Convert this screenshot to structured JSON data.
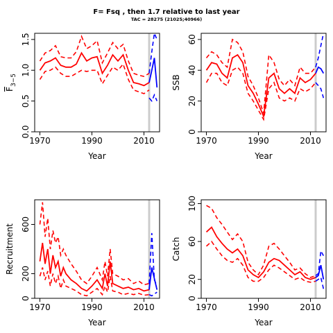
{
  "title": "F= Fsq , then 1.7  relative to last year",
  "subtitle": "TAC = 28275 (21025;40966)",
  "colors": {
    "historic": "#ff0000",
    "forecast": "#0000ff",
    "reference_line": "#cccccc"
  },
  "chart_data": [
    {
      "type": "line",
      "ylabel": "F-bar(3-5)",
      "ylabel_main": "F",
      "ylabel_sub": "3−5",
      "xlabel": "Year",
      "xlim": [
        1968,
        2016
      ],
      "ylim": [
        0,
        1.6
      ],
      "xticks": [
        1970,
        1990,
        2010
      ],
      "yticks": [
        0.0,
        0.5,
        1.0,
        1.5
      ],
      "ytick_labels": [
        "0.0",
        "0.5",
        "1.0",
        "1.5"
      ],
      "reference_year": 2012,
      "series": [
        {
          "role": "estimate",
          "x": [
            1970,
            1972,
            1974,
            1976,
            1978,
            1980,
            1982,
            1984,
            1986,
            1988,
            1990,
            1992,
            1994,
            1996,
            1998,
            2000,
            2002,
            2004,
            2006,
            2008,
            2010,
            2012
          ],
          "values": [
            1.0,
            1.12,
            1.15,
            1.2,
            1.08,
            1.05,
            1.05,
            1.1,
            1.28,
            1.15,
            1.2,
            1.22,
            0.95,
            1.08,
            1.25,
            1.15,
            1.25,
            1.0,
            0.8,
            0.78,
            0.75,
            0.8
          ]
        },
        {
          "role": "upper",
          "x": [
            1970,
            1972,
            1974,
            1976,
            1978,
            1980,
            1982,
            1984,
            1986,
            1988,
            1990,
            1992,
            1994,
            1996,
            1998,
            2000,
            2002,
            2004,
            2006,
            2008,
            2010,
            2012
          ],
          "values": [
            1.15,
            1.28,
            1.32,
            1.4,
            1.22,
            1.2,
            1.2,
            1.3,
            1.55,
            1.35,
            1.4,
            1.48,
            1.12,
            1.28,
            1.45,
            1.35,
            1.42,
            1.15,
            0.95,
            0.92,
            0.9,
            0.95
          ]
        },
        {
          "role": "lower",
          "x": [
            1970,
            1972,
            1974,
            1976,
            1978,
            1980,
            1982,
            1984,
            1986,
            1988,
            1990,
            1992,
            1994,
            1996,
            1998,
            2000,
            2002,
            2004,
            2006,
            2008,
            2010,
            2012
          ],
          "values": [
            0.85,
            0.98,
            1.0,
            1.05,
            0.95,
            0.9,
            0.9,
            0.95,
            1.0,
            0.98,
            1.0,
            1.0,
            0.78,
            0.92,
            1.05,
            1.0,
            1.1,
            0.85,
            0.68,
            0.65,
            0.62,
            0.68
          ]
        },
        {
          "role": "forecast",
          "x": [
            2012,
            2013,
            2014,
            2015
          ],
          "values": [
            0.8,
            1.0,
            1.2,
            0.72
          ]
        },
        {
          "role": "forecast_upper",
          "x": [
            2012,
            2013,
            2014,
            2015
          ],
          "values": [
            0.95,
            1.3,
            1.6,
            1.5
          ]
        },
        {
          "role": "forecast_lower",
          "x": [
            2012,
            2013,
            2014,
            2015
          ],
          "values": [
            0.55,
            0.5,
            0.6,
            0.5
          ]
        }
      ]
    },
    {
      "type": "line",
      "ylabel": "SSB",
      "xlabel": "Year",
      "xlim": [
        1968,
        2016
      ],
      "ylim": [
        0,
        64
      ],
      "xticks": [
        1970,
        1990,
        2010
      ],
      "yticks": [
        0,
        20,
        40,
        60
      ],
      "ytick_labels": [
        "0",
        "20",
        "40",
        "60"
      ],
      "reference_year": 2012,
      "series": [
        {
          "role": "estimate",
          "x": [
            1970,
            1972,
            1974,
            1976,
            1978,
            1980,
            1982,
            1984,
            1986,
            1988,
            1990,
            1992,
            1994,
            1996,
            1998,
            2000,
            2002,
            2004,
            2006,
            2008,
            2010,
            2012
          ],
          "values": [
            40,
            45,
            44,
            38,
            35,
            48,
            50,
            45,
            30,
            25,
            18,
            10,
            35,
            38,
            28,
            25,
            28,
            25,
            35,
            32,
            34,
            38
          ]
        },
        {
          "role": "upper",
          "x": [
            1970,
            1972,
            1974,
            1976,
            1978,
            1980,
            1982,
            1984,
            1986,
            1988,
            1990,
            1992,
            1994,
            1996,
            1998,
            2000,
            2002,
            2004,
            2006,
            2008,
            2010,
            2012
          ],
          "values": [
            48,
            52,
            50,
            45,
            42,
            60,
            58,
            52,
            36,
            30,
            22,
            12,
            50,
            45,
            34,
            30,
            34,
            30,
            42,
            38,
            38,
            42
          ]
        },
        {
          "role": "lower",
          "x": [
            1970,
            1972,
            1974,
            1976,
            1978,
            1980,
            1982,
            1984,
            1986,
            1988,
            1990,
            1992,
            1994,
            1996,
            1998,
            2000,
            2002,
            2004,
            2006,
            2008,
            2010,
            2012
          ],
          "values": [
            32,
            38,
            38,
            32,
            30,
            40,
            42,
            38,
            25,
            20,
            14,
            8,
            28,
            32,
            22,
            20,
            22,
            20,
            28,
            26,
            28,
            32
          ]
        },
        {
          "role": "forecast",
          "x": [
            2012,
            2013,
            2014,
            2015
          ],
          "values": [
            38,
            42,
            41,
            38
          ]
        },
        {
          "role": "forecast_upper",
          "x": [
            2012,
            2013,
            2014,
            2015
          ],
          "values": [
            42,
            48,
            56,
            64
          ]
        },
        {
          "role": "forecast_lower",
          "x": [
            2012,
            2013,
            2014,
            2015
          ],
          "values": [
            32,
            30,
            28,
            22
          ]
        }
      ]
    },
    {
      "type": "line",
      "ylabel": "Recruitment",
      "xlabel": "Year",
      "xlim": [
        1968,
        2016
      ],
      "ylim": [
        0,
        800
      ],
      "xticks": [
        1970,
        1990,
        2010
      ],
      "yticks": [
        0,
        200,
        600
      ],
      "ytick_labels": [
        "0",
        "200",
        "600"
      ],
      "reference_year": 2012,
      "series": [
        {
          "role": "estimate",
          "x": [
            1970,
            1971,
            1972,
            1973,
            1974,
            1975,
            1976,
            1977,
            1978,
            1979,
            1980,
            1982,
            1984,
            1986,
            1988,
            1990,
            1992,
            1994,
            1995,
            1996,
            1997,
            1998,
            2000,
            2002,
            2004,
            2006,
            2008,
            2010,
            2012
          ],
          "values": [
            300,
            450,
            280,
            400,
            200,
            350,
            250,
            300,
            180,
            250,
            200,
            150,
            120,
            80,
            60,
            100,
            150,
            80,
            200,
            100,
            300,
            120,
            100,
            80,
            90,
            70,
            80,
            60,
            70
          ]
        },
        {
          "role": "upper",
          "x": [
            1970,
            1971,
            1972,
            1973,
            1974,
            1975,
            1976,
            1977,
            1978,
            1979,
            1980,
            1982,
            1984,
            1986,
            1988,
            1990,
            1992,
            1994,
            1995,
            1996,
            1997,
            1998,
            2000,
            2002,
            2004,
            2006,
            2008,
            2010,
            2012
          ],
          "values": [
            600,
            780,
            500,
            650,
            400,
            550,
            450,
            500,
            350,
            400,
            350,
            280,
            220,
            150,
            120,
            180,
            250,
            150,
            300,
            180,
            400,
            200,
            180,
            150,
            160,
            120,
            140,
            110,
            120
          ]
        },
        {
          "role": "lower",
          "x": [
            1970,
            1971,
            1972,
            1973,
            1974,
            1975,
            1976,
            1977,
            1978,
            1979,
            1980,
            1982,
            1984,
            1986,
            1988,
            1990,
            1992,
            1994,
            1995,
            1996,
            1997,
            1998,
            2000,
            2002,
            2004,
            2006,
            2008,
            2010,
            2012
          ],
          "values": [
            180,
            250,
            150,
            220,
            100,
            200,
            120,
            180,
            80,
            150,
            100,
            80,
            60,
            30,
            20,
            50,
            80,
            30,
            100,
            50,
            180,
            60,
            50,
            30,
            40,
            30,
            40,
            25,
            30
          ]
        },
        {
          "role": "forecast",
          "x": [
            2012,
            2013,
            2014,
            2015
          ],
          "values": [
            70,
            250,
            160,
            70
          ]
        },
        {
          "role": "forecast_upper",
          "x": [
            2012,
            2013,
            2014,
            2015
          ],
          "values": [
            120,
            530,
            150,
            100
          ]
        },
        {
          "role": "forecast_lower",
          "x": [
            2012,
            2013,
            2014,
            2015
          ],
          "values": [
            30,
            20,
            35,
            50
          ]
        }
      ]
    },
    {
      "type": "line",
      "ylabel": "Catch",
      "xlabel": "Year",
      "xlim": [
        1968,
        2016
      ],
      "ylim": [
        0,
        104
      ],
      "xticks": [
        1970,
        1990,
        2010
      ],
      "yticks": [
        0,
        20,
        60,
        100
      ],
      "ytick_labels": [
        "0",
        "20",
        "60",
        "100"
      ],
      "reference_year": 2012,
      "series": [
        {
          "role": "estimate",
          "x": [
            1970,
            1972,
            1974,
            1976,
            1978,
            1980,
            1982,
            1984,
            1986,
            1988,
            1990,
            1992,
            1994,
            1996,
            1998,
            2000,
            2002,
            2004,
            2006,
            2008,
            2010,
            2012
          ],
          "values": [
            70,
            75,
            65,
            58,
            52,
            48,
            52,
            45,
            30,
            25,
            22,
            28,
            38,
            42,
            40,
            35,
            30,
            25,
            28,
            22,
            20,
            22
          ]
        },
        {
          "role": "upper",
          "x": [
            1970,
            1972,
            1974,
            1976,
            1978,
            1980,
            1982,
            1984,
            1986,
            1988,
            1990,
            1992,
            1994,
            1996,
            1998,
            2000,
            2002,
            2004,
            2006,
            2008,
            2010,
            2012
          ],
          "values": [
            98,
            95,
            85,
            78,
            70,
            62,
            68,
            60,
            38,
            30,
            25,
            35,
            55,
            58,
            52,
            45,
            38,
            30,
            32,
            26,
            22,
            24
          ]
        },
        {
          "role": "lower",
          "x": [
            1970,
            1972,
            1974,
            1976,
            1978,
            1980,
            1982,
            1984,
            1986,
            1988,
            1990,
            1992,
            1994,
            1996,
            1998,
            2000,
            2002,
            2004,
            2006,
            2008,
            2010,
            2012
          ],
          "values": [
            55,
            60,
            52,
            45,
            40,
            38,
            42,
            35,
            22,
            18,
            18,
            22,
            30,
            35,
            32,
            28,
            24,
            20,
            22,
            18,
            17,
            18
          ]
        },
        {
          "role": "forecast",
          "x": [
            2012,
            2013,
            2014,
            2015
          ],
          "values": [
            22,
            24,
            35,
            20
          ]
        },
        {
          "role": "forecast_upper",
          "x": [
            2012,
            2013,
            2014,
            2015
          ],
          "values": [
            24,
            26,
            50,
            45
          ]
        },
        {
          "role": "forecast_lower",
          "x": [
            2012,
            2013,
            2014,
            2015
          ],
          "values": [
            18,
            20,
            22,
            10
          ]
        }
      ]
    }
  ]
}
